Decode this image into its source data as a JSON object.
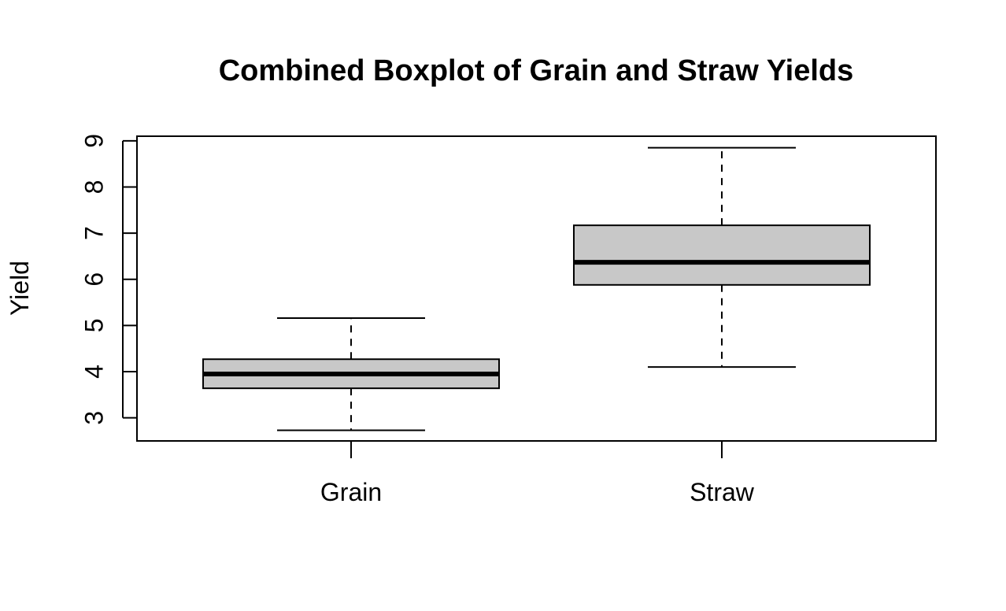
{
  "chart_data": {
    "type": "boxplot",
    "title": "Combined Boxplot of Grain and Straw Yields",
    "xlabel": "",
    "ylabel": "Yield",
    "categories": [
      "Grain",
      "Straw"
    ],
    "boxes": [
      {
        "category": "Grain",
        "whisker_low": 2.73,
        "q1": 3.64,
        "median": 3.95,
        "q3": 4.27,
        "whisker_high": 5.16
      },
      {
        "category": "Straw",
        "whisker_low": 4.1,
        "q1": 5.88,
        "median": 6.37,
        "q3": 7.17,
        "whisker_high": 8.85
      }
    ],
    "yticks": [
      3,
      4,
      5,
      6,
      7,
      8,
      9
    ],
    "ylim": [
      2.5,
      9.1
    ],
    "grid": false,
    "box_fill": "#c8c8c8",
    "line_color": "#000000"
  }
}
